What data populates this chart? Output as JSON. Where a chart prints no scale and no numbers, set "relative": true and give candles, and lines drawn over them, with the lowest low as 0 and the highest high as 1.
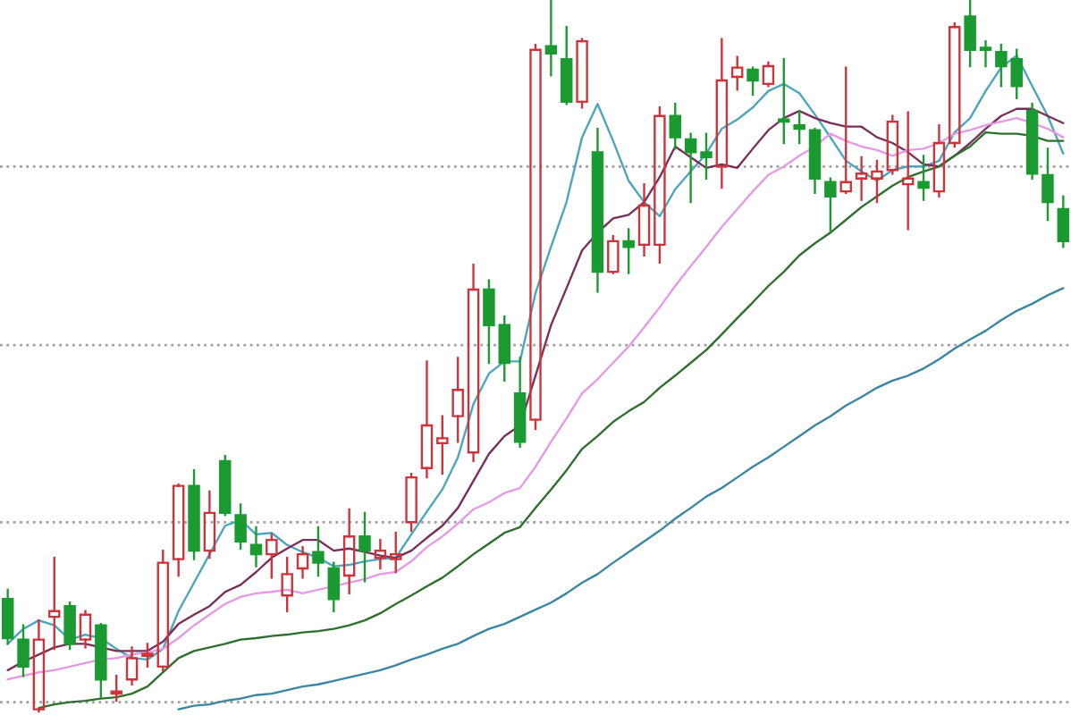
{
  "chart_data": {
    "type": "candlestick",
    "relative": true,
    "categories": [
      null,
      null,
      null,
      null,
      null,
      null,
      null,
      null,
      null,
      null,
      null,
      null,
      null,
      null,
      null,
      null,
      null,
      null,
      null,
      null,
      null,
      null,
      null,
      null,
      null,
      null,
      null,
      null,
      null,
      null,
      null,
      null,
      null,
      null,
      null,
      null,
      null,
      null,
      null,
      null,
      null,
      null,
      null,
      null,
      null,
      null,
      null,
      null,
      null,
      null,
      null,
      null,
      null,
      null,
      null,
      null,
      null,
      null,
      null,
      null,
      null,
      null,
      null,
      null,
      null,
      null,
      null,
      null,
      null
    ],
    "ohlc": [
      [
        0.158,
        0.171,
        0.095,
        0.103
      ],
      [
        0.101,
        0.121,
        0.05,
        0.063
      ],
      [
        0.003,
        0.128,
        0.0,
        0.101
      ],
      [
        0.133,
        0.216,
        0.088,
        0.141
      ],
      [
        0.148,
        0.153,
        0.088,
        0.095
      ],
      [
        0.101,
        0.141,
        0.09,
        0.136
      ],
      [
        0.121,
        0.123,
        0.02,
        0.045
      ],
      [
        0.025,
        0.05,
        0.015,
        0.028
      ],
      [
        0.045,
        0.09,
        0.038,
        0.075
      ],
      [
        0.078,
        0.095,
        0.063,
        0.08
      ],
      [
        0.063,
        0.226,
        0.058,
        0.209
      ],
      [
        0.214,
        0.319,
        0.191,
        0.317
      ],
      [
        0.317,
        0.339,
        0.214,
        0.226
      ],
      [
        0.226,
        0.309,
        0.216,
        0.279
      ],
      [
        0.352,
        0.359,
        0.276,
        0.279
      ],
      [
        0.276,
        0.291,
        0.229,
        0.239
      ],
      [
        0.234,
        0.259,
        0.204,
        0.221
      ],
      [
        0.221,
        0.249,
        0.188,
        0.241
      ],
      [
        0.163,
        0.216,
        0.141,
        0.193
      ],
      [
        0.201,
        0.231,
        0.188,
        0.221
      ],
      [
        0.224,
        0.259,
        0.191,
        0.209
      ],
      [
        0.201,
        0.209,
        0.141,
        0.158
      ],
      [
        0.191,
        0.284,
        0.166,
        0.246
      ],
      [
        0.246,
        0.279,
        0.183,
        0.226
      ],
      [
        0.216,
        0.241,
        0.201,
        0.226
      ],
      [
        0.214,
        0.251,
        0.196,
        0.221
      ],
      [
        0.266,
        0.334,
        0.254,
        0.329
      ],
      [
        0.342,
        0.492,
        0.329,
        0.402
      ],
      [
        0.377,
        0.415,
        0.334,
        0.384
      ],
      [
        0.415,
        0.497,
        0.379,
        0.452
      ],
      [
        0.364,
        0.628,
        0.352,
        0.593
      ],
      [
        0.593,
        0.606,
        0.49,
        0.543
      ],
      [
        0.543,
        0.555,
        0.465,
        0.49
      ],
      [
        0.447,
        0.497,
        0.372,
        0.379
      ],
      [
        0.41,
        0.937,
        0.397,
        0.93
      ],
      [
        0.935,
        1.0,
        0.894,
        0.925
      ],
      [
        0.917,
        0.962,
        0.854,
        0.857
      ],
      [
        0.857,
        0.945,
        0.849,
        0.942
      ],
      [
        0.786,
        0.819,
        0.59,
        0.618
      ],
      [
        0.618,
        0.668,
        0.616,
        0.661
      ],
      [
        0.661,
        0.678,
        0.616,
        0.653
      ],
      [
        0.656,
        0.741,
        0.641,
        0.711
      ],
      [
        0.656,
        0.849,
        0.631,
        0.837
      ],
      [
        0.837,
        0.854,
        0.791,
        0.807
      ],
      [
        0.804,
        0.812,
        0.716,
        0.786
      ],
      [
        0.786,
        0.812,
        0.749,
        0.779
      ],
      [
        0.766,
        0.945,
        0.736,
        0.887
      ],
      [
        0.892,
        0.92,
        0.874,
        0.905
      ],
      [
        0.902,
        0.905,
        0.867,
        0.887
      ],
      [
        0.882,
        0.912,
        0.879,
        0.907
      ],
      [
        0.832,
        0.917,
        0.799,
        0.829
      ],
      [
        0.824,
        0.844,
        0.799,
        0.819
      ],
      [
        0.817,
        0.819,
        0.729,
        0.749
      ],
      [
        0.744,
        0.749,
        0.673,
        0.724
      ],
      [
        0.731,
        0.905,
        0.729,
        0.744
      ],
      [
        0.749,
        0.779,
        0.719,
        0.756
      ],
      [
        0.749,
        0.774,
        0.716,
        0.759
      ],
      [
        0.761,
        0.837,
        0.756,
        0.829
      ],
      [
        0.741,
        0.842,
        0.678,
        0.749
      ],
      [
        0.744,
        0.781,
        0.719,
        0.736
      ],
      [
        0.731,
        0.824,
        0.724,
        0.799
      ],
      [
        0.799,
        0.967,
        0.794,
        0.962
      ],
      [
        0.977,
        1.0,
        0.907,
        0.93
      ],
      [
        0.932,
        0.942,
        0.907,
        0.93
      ],
      [
        0.927,
        0.937,
        0.879,
        0.907
      ],
      [
        0.917,
        0.93,
        0.862,
        0.879
      ],
      [
        0.844,
        0.854,
        0.749,
        0.756
      ],
      [
        0.754,
        0.791,
        0.691,
        0.716
      ],
      [
        0.706,
        0.724,
        0.653,
        0.661
      ]
    ],
    "colors": [
      "#1a9a30",
      "#1a9a30",
      "#d0323a",
      "#d0323a",
      "#1a9a30",
      "#d0323a",
      "#1a9a30",
      "#d0323a",
      "#d0323a",
      "#d0323a",
      "#d0323a",
      "#d0323a",
      "#1a9a30",
      "#d0323a",
      "#1a9a30",
      "#1a9a30",
      "#1a9a30",
      "#d0323a",
      "#d0323a",
      "#d0323a",
      "#1a9a30",
      "#1a9a30",
      "#d0323a",
      "#1a9a30",
      "#d0323a",
      "#d0323a",
      "#d0323a",
      "#d0323a",
      "#d0323a",
      "#d0323a",
      "#d0323a",
      "#1a9a30",
      "#1a9a30",
      "#1a9a30",
      "#d0323a",
      "#1a9a30",
      "#1a9a30",
      "#d0323a",
      "#1a9a30",
      "#d0323a",
      "#1a9a30",
      "#d0323a",
      "#d0323a",
      "#1a9a30",
      "#1a9a30",
      "#1a9a30",
      "#d0323a",
      "#d0323a",
      "#1a9a30",
      "#d0323a",
      "#1a9a30",
      "#1a9a30",
      "#1a9a30",
      "#1a9a30",
      "#d0323a",
      "#d0323a",
      "#d0323a",
      "#d0323a",
      "#d0323a",
      "#1a9a30",
      "#d0323a",
      "#d0323a",
      "#1a9a30",
      "#1a9a30",
      "#1a9a30",
      "#1a9a30",
      "#1a9a30",
      "#1a9a30",
      "#1a9a30"
    ],
    "series": [
      {
        "type": "line",
        "color": "#4aa6bc",
        "values": [
          0.095,
          0.116,
          0.128,
          0.121,
          0.101,
          0.108,
          0.103,
          0.088,
          0.075,
          0.073,
          0.088,
          0.141,
          0.181,
          0.221,
          0.261,
          0.269,
          0.249,
          0.251,
          0.234,
          0.224,
          0.216,
          0.204,
          0.206,
          0.211,
          0.214,
          0.216,
          0.249,
          0.281,
          0.312,
          0.357,
          0.432,
          0.475,
          0.492,
          0.492,
          0.588,
          0.653,
          0.716,
          0.807,
          0.854,
          0.802,
          0.746,
          0.716,
          0.696,
          0.734,
          0.759,
          0.784,
          0.819,
          0.832,
          0.849,
          0.872,
          0.882,
          0.869,
          0.839,
          0.807,
          0.774,
          0.759,
          0.746,
          0.761,
          0.766,
          0.766,
          0.774,
          0.814,
          0.834,
          0.872,
          0.905,
          0.922,
          0.879,
          0.837,
          0.784
        ]
      },
      {
        "type": "line",
        "color": "#7a2e5a",
        "values": [
          0.058,
          0.07,
          0.08,
          0.09,
          0.095,
          0.095,
          0.09,
          0.085,
          0.085,
          0.085,
          0.098,
          0.123,
          0.136,
          0.148,
          0.168,
          0.178,
          0.196,
          0.216,
          0.229,
          0.241,
          0.241,
          0.226,
          0.229,
          0.224,
          0.219,
          0.216,
          0.226,
          0.244,
          0.261,
          0.286,
          0.324,
          0.362,
          0.387,
          0.402,
          0.472,
          0.543,
          0.595,
          0.648,
          0.673,
          0.693,
          0.698,
          0.716,
          0.751,
          0.794,
          0.779,
          0.764,
          0.769,
          0.764,
          0.791,
          0.817,
          0.834,
          0.844,
          0.834,
          0.827,
          0.822,
          0.822,
          0.807,
          0.799,
          0.786,
          0.769,
          0.766,
          0.781,
          0.799,
          0.819,
          0.837,
          0.847,
          0.847,
          0.837,
          0.827
        ]
      },
      {
        "type": "line",
        "color": "#e49ae4",
        "values": [
          0.045,
          0.05,
          0.055,
          0.058,
          0.063,
          0.068,
          0.073,
          0.075,
          0.08,
          0.083,
          0.088,
          0.103,
          0.121,
          0.136,
          0.151,
          0.161,
          0.166,
          0.168,
          0.171,
          0.166,
          0.171,
          0.176,
          0.181,
          0.186,
          0.193,
          0.196,
          0.211,
          0.231,
          0.246,
          0.264,
          0.284,
          0.294,
          0.307,
          0.314,
          0.344,
          0.379,
          0.412,
          0.447,
          0.467,
          0.49,
          0.513,
          0.54,
          0.568,
          0.598,
          0.626,
          0.653,
          0.681,
          0.706,
          0.731,
          0.754,
          0.766,
          0.781,
          0.794,
          0.812,
          0.802,
          0.794,
          0.789,
          0.781,
          0.789,
          0.791,
          0.799,
          0.812,
          0.817,
          0.824,
          0.829,
          0.834,
          0.827,
          0.819,
          0.807
        ]
      },
      {
        "type": "line",
        "color": "#2f6e2f",
        "values": [
          null,
          null,
          0.005,
          0.01,
          0.013,
          0.015,
          0.018,
          0.02,
          0.025,
          0.035,
          0.055,
          0.075,
          0.085,
          0.09,
          0.095,
          0.101,
          0.103,
          0.106,
          0.108,
          0.111,
          0.113,
          0.116,
          0.121,
          0.128,
          0.138,
          0.151,
          0.163,
          0.176,
          0.188,
          0.204,
          0.221,
          0.236,
          0.251,
          0.259,
          0.286,
          0.312,
          0.339,
          0.369,
          0.387,
          0.407,
          0.422,
          0.435,
          0.455,
          0.472,
          0.49,
          0.508,
          0.53,
          0.553,
          0.575,
          0.598,
          0.618,
          0.641,
          0.658,
          0.673,
          0.691,
          0.709,
          0.724,
          0.739,
          0.751,
          0.759,
          0.766,
          0.781,
          0.794,
          0.814,
          0.812,
          0.812,
          0.809,
          0.802,
          0.802
        ]
      },
      {
        "type": "line",
        "color": "#3a86a2",
        "values": [
          null,
          null,
          null,
          null,
          null,
          null,
          null,
          null,
          null,
          null,
          null,
          0.003,
          0.008,
          0.01,
          0.015,
          0.018,
          0.023,
          0.025,
          0.03,
          0.035,
          0.038,
          0.043,
          0.048,
          0.053,
          0.058,
          0.065,
          0.073,
          0.08,
          0.088,
          0.095,
          0.106,
          0.116,
          0.123,
          0.133,
          0.143,
          0.153,
          0.166,
          0.181,
          0.193,
          0.209,
          0.224,
          0.239,
          0.254,
          0.271,
          0.286,
          0.302,
          0.314,
          0.329,
          0.344,
          0.357,
          0.372,
          0.387,
          0.402,
          0.415,
          0.43,
          0.442,
          0.455,
          0.465,
          0.472,
          0.482,
          0.495,
          0.51,
          0.523,
          0.535,
          0.55,
          0.563,
          0.573,
          0.585,
          0.595
        ]
      }
    ],
    "ref_lines": [
      {
        "axis": "y",
        "value": 0.766,
        "line_style": "dotted",
        "color": "#a0a0a0"
      },
      {
        "axis": "y",
        "value": 0.515,
        "line_style": "dotted",
        "color": "#a0a0a0"
      },
      {
        "axis": "y",
        "value": 0.266,
        "line_style": "dotted",
        "color": "#a0a0a0"
      },
      {
        "axis": "y",
        "value": 0.013,
        "line_style": "dotted",
        "color": "#a0a0a0"
      }
    ]
  }
}
